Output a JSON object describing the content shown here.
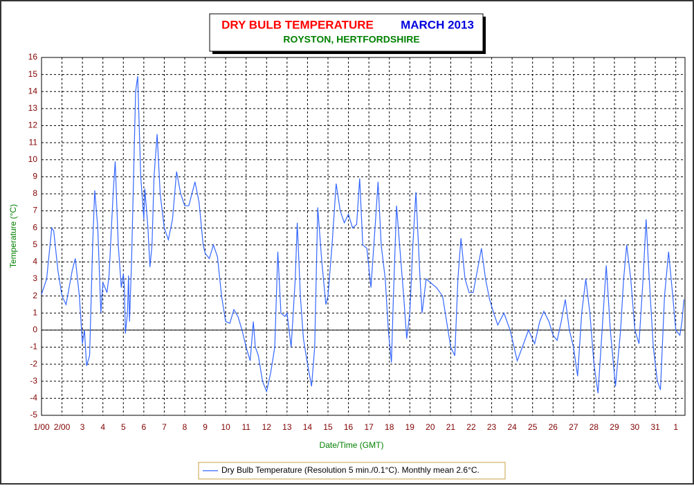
{
  "chart_data": {
    "type": "line",
    "title": "DRY BULB TEMPERATURE",
    "period": "MARCH 2013",
    "subtitle": "ROYSTON, HERTFORDSHIRE",
    "x_label": "Date/Time (GMT)",
    "y_label": "Temperature (°C)",
    "xlim": [
      0,
      31.45
    ],
    "ylim": [
      -5,
      16
    ],
    "xticks": [
      {
        "value": 0,
        "label": "1/00"
      },
      {
        "value": 1,
        "label": "2/00"
      },
      {
        "value": 2,
        "label": "3"
      },
      {
        "value": 3,
        "label": "4"
      },
      {
        "value": 4,
        "label": "5"
      },
      {
        "value": 5,
        "label": "6"
      },
      {
        "value": 6,
        "label": "7"
      },
      {
        "value": 7,
        "label": "8"
      },
      {
        "value": 8,
        "label": "9"
      },
      {
        "value": 9,
        "label": "10"
      },
      {
        "value": 10,
        "label": "11"
      },
      {
        "value": 11,
        "label": "12"
      },
      {
        "value": 12,
        "label": "13"
      },
      {
        "value": 13,
        "label": "14"
      },
      {
        "value": 14,
        "label": "15"
      },
      {
        "value": 15,
        "label": "16"
      },
      {
        "value": 16,
        "label": "17"
      },
      {
        "value": 17,
        "label": "18"
      },
      {
        "value": 18,
        "label": "19"
      },
      {
        "value": 19,
        "label": "20"
      },
      {
        "value": 20,
        "label": "21"
      },
      {
        "value": 21,
        "label": "22"
      },
      {
        "value": 22,
        "label": "23"
      },
      {
        "value": 23,
        "label": "24"
      },
      {
        "value": 24,
        "label": "25"
      },
      {
        "value": 25,
        "label": "26"
      },
      {
        "value": 26,
        "label": "27"
      },
      {
        "value": 27,
        "label": "28"
      },
      {
        "value": 28,
        "label": "29"
      },
      {
        "value": 29,
        "label": "30"
      },
      {
        "value": 30,
        "label": "31"
      },
      {
        "value": 31,
        "label": "1"
      }
    ],
    "yticks": [
      -5,
      -4,
      -3,
      -2,
      -1,
      0,
      1,
      2,
      3,
      4,
      5,
      6,
      7,
      8,
      9,
      10,
      11,
      12,
      13,
      14,
      15,
      16
    ],
    "grid": true,
    "legend": "bottom",
    "x": [
      0,
      0.25,
      0.5,
      0.6,
      0.8,
      1.0,
      1.2,
      1.5,
      1.65,
      1.85,
      2.0,
      2.1,
      2.2,
      2.35,
      2.5,
      2.6,
      2.75,
      2.9,
      3.0,
      3.2,
      3.3,
      3.5,
      3.6,
      3.75,
      3.9,
      4.0,
      4.05,
      4.1,
      4.2,
      4.25,
      4.3,
      4.4,
      4.6,
      4.7,
      4.85,
      5.0,
      5.05,
      5.2,
      5.3,
      5.4,
      5.5,
      5.65,
      5.8,
      6.0,
      6.2,
      6.4,
      6.6,
      6.8,
      7.0,
      7.2,
      7.5,
      7.7,
      7.9,
      8.0,
      8.2,
      8.4,
      8.6,
      8.8,
      9.0,
      9.2,
      9.4,
      9.6,
      9.8,
      10.0,
      10.2,
      10.35,
      10.45,
      10.6,
      10.8,
      11.0,
      11.2,
      11.4,
      11.55,
      11.7,
      11.9,
      12.0,
      12.2,
      12.4,
      12.5,
      12.65,
      12.8,
      13.0,
      13.2,
      13.35,
      13.5,
      13.7,
      13.9,
      14.0,
      14.2,
      14.4,
      14.6,
      14.8,
      15.0,
      15.2,
      15.4,
      15.55,
      15.7,
      15.9,
      16.1,
      16.3,
      16.45,
      16.6,
      16.8,
      16.95,
      17.1,
      17.2,
      17.35,
      17.5,
      17.7,
      17.85,
      18.0,
      18.15,
      18.3,
      18.5,
      18.6,
      18.8,
      19.0,
      19.3,
      19.6,
      19.8,
      20.0,
      20.2,
      20.35,
      20.5,
      20.7,
      20.9,
      21.1,
      21.3,
      21.5,
      21.7,
      21.9,
      22.1,
      22.3,
      22.6,
      22.9,
      23.25,
      23.5,
      23.8,
      24.1,
      24.35,
      24.55,
      24.8,
      25.0,
      25.2,
      25.4,
      25.6,
      25.8,
      26.0,
      26.2,
      26.4,
      26.6,
      26.8,
      27.0,
      27.2,
      27.4,
      27.6,
      27.8,
      28.05,
      28.3,
      28.45,
      28.6,
      28.8,
      29.0,
      29.2,
      29.4,
      29.55,
      29.7,
      29.9,
      30.1,
      30.25,
      30.45,
      30.65,
      30.85,
      31.0,
      31.2,
      31.3,
      31.4
    ],
    "series": [
      {
        "name": "Dry Bulb Temperature (Resolution 5 min./0.1°C). Monthly mean 2.6°C.",
        "color": "#3366ff",
        "values": [
          2.1,
          3,
          6,
          5.8,
          3.5,
          2,
          1.5,
          3.5,
          4.2,
          2,
          -0.8,
          0,
          -2.1,
          -1.5,
          5,
          8.2,
          6,
          1,
          2.8,
          2.2,
          3.2,
          8,
          9.9,
          5,
          2.5,
          3.3,
          2.5,
          -0.2,
          1,
          3.2,
          0.5,
          4,
          14,
          14.9,
          9,
          6.5,
          8.3,
          6,
          3.7,
          5,
          9,
          11.5,
          8,
          6,
          5.3,
          6.5,
          9.3,
          8,
          7.3,
          7.3,
          8.7,
          7.5,
          5,
          4.5,
          4.2,
          5,
          4.3,
          2,
          0.5,
          0.4,
          1.2,
          0.8,
          0,
          -1,
          -1.8,
          0.5,
          -1,
          -1.5,
          -3,
          -3.6,
          -2.5,
          -1,
          4.6,
          1,
          0.8,
          1,
          -1,
          3,
          6.3,
          2,
          -0.5,
          -2,
          -3.3,
          -1,
          7.2,
          4,
          1.5,
          2,
          5,
          8.6,
          7,
          6.3,
          6.8,
          6,
          6.2,
          8.9,
          5,
          4.8,
          2.5,
          6,
          8.7,
          5,
          3,
          0,
          -1.9,
          2,
          7.3,
          5,
          2,
          -0.5,
          1,
          5,
          8.1,
          3,
          1,
          3,
          2.8,
          2.5,
          2.0,
          0.5,
          -1,
          -1.5,
          3,
          5.4,
          3,
          2.2,
          2.2,
          3.5,
          4.8,
          3,
          1.8,
          1,
          0.3,
          1,
          0,
          -1.8,
          -1,
          0,
          -0.8,
          0.5,
          1.1,
          0.5,
          -0.3,
          -0.6,
          0.5,
          1.8,
          0,
          -1,
          -2.7,
          1,
          3,
          1,
          -2,
          -3.7,
          0,
          3.8,
          0,
          -3.3,
          0,
          3,
          5,
          3,
          0,
          -0.8,
          3,
          6.5,
          3,
          -1,
          -3,
          -3.5,
          2,
          4.6,
          2,
          0,
          -0.3,
          0.5,
          1.8
        ]
      }
    ]
  }
}
